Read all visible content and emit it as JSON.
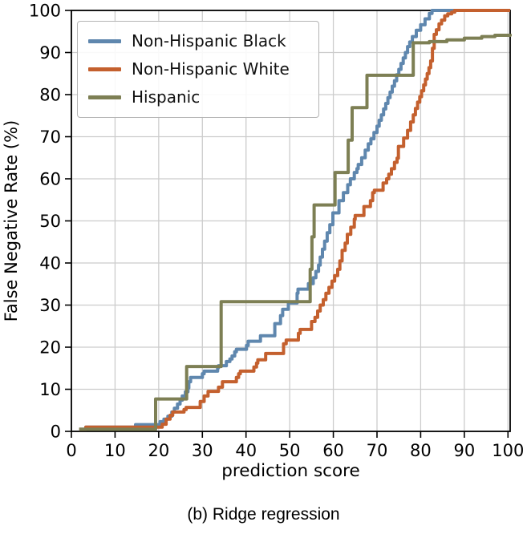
{
  "caption": "(b) Ridge regression",
  "chart_data": {
    "type": "line",
    "subtype": "step-post",
    "title": "",
    "xlabel": "prediction score",
    "ylabel": "False Negative Rate (%)",
    "xlim": [
      0,
      100.5
    ],
    "ylim": [
      0,
      100
    ],
    "xticks": [
      0,
      10,
      20,
      30,
      40,
      50,
      60,
      70,
      80,
      90,
      100
    ],
    "yticks": [
      0,
      10,
      20,
      30,
      40,
      50,
      60,
      70,
      80,
      90,
      100
    ],
    "grid": true,
    "grid_color": "#cccccc",
    "spine_color": "#000000",
    "legend_position": "upper-left",
    "series": [
      {
        "name": "Non-Hispanic Black",
        "color": "#5f87ae",
        "points": [
          [
            1.8,
            0.5
          ],
          [
            3.3,
            1
          ],
          [
            14.7,
            1.6
          ],
          [
            20.3,
            2.3
          ],
          [
            21.2,
            2.9
          ],
          [
            22.1,
            3.6
          ],
          [
            23,
            4.6
          ],
          [
            23.6,
            5.5
          ],
          [
            24.3,
            6.5
          ],
          [
            24.9,
            7.4
          ],
          [
            25.4,
            8.4
          ],
          [
            26.1,
            9.4
          ],
          [
            26.7,
            10.3
          ],
          [
            26.9,
            11.8
          ],
          [
            27.3,
            12.8
          ],
          [
            30,
            13.7
          ],
          [
            30.4,
            14.3
          ],
          [
            33.5,
            15.1
          ],
          [
            33.7,
            15.6
          ],
          [
            35.5,
            16.6
          ],
          [
            36.3,
            17.2
          ],
          [
            36.8,
            17.9
          ],
          [
            37.4,
            18.9
          ],
          [
            37.8,
            19.5
          ],
          [
            40.1,
            20.4
          ],
          [
            40.5,
            21.4
          ],
          [
            43.3,
            22.7
          ],
          [
            46.6,
            25.6
          ],
          [
            47.9,
            27.5
          ],
          [
            48.4,
            29
          ],
          [
            49.7,
            30.5
          ],
          [
            51.7,
            32.8
          ],
          [
            51.9,
            33.8
          ],
          [
            54.3,
            35.1
          ],
          [
            55.4,
            36.5
          ],
          [
            56,
            38
          ],
          [
            56.6,
            39.5
          ],
          [
            57,
            41.4
          ],
          [
            57.5,
            43.3
          ],
          [
            58,
            45.2
          ],
          [
            58.6,
            47.2
          ],
          [
            59.2,
            49.1
          ],
          [
            59.9,
            51.9
          ],
          [
            61.3,
            54.8
          ],
          [
            62.3,
            56.7
          ],
          [
            63.3,
            58.6
          ],
          [
            63.9,
            60
          ],
          [
            64.8,
            61.5
          ],
          [
            65.4,
            62.4
          ],
          [
            65.7,
            63.4
          ],
          [
            66.5,
            65
          ],
          [
            67.3,
            66.8
          ],
          [
            68,
            68.3
          ],
          [
            68.6,
            69.5
          ],
          [
            69.3,
            71
          ],
          [
            70,
            72.5
          ],
          [
            70.5,
            73.9
          ],
          [
            71,
            75.2
          ],
          [
            71.5,
            76.6
          ],
          [
            72,
            77.9
          ],
          [
            72.5,
            79.3
          ],
          [
            73,
            80.6
          ],
          [
            73.5,
            82
          ],
          [
            74,
            83.3
          ],
          [
            74.5,
            84.7
          ],
          [
            75,
            86
          ],
          [
            75.5,
            87.4
          ],
          [
            76,
            88.7
          ],
          [
            76.5,
            90
          ],
          [
            77,
            91.4
          ],
          [
            77.5,
            92.5
          ],
          [
            78.1,
            93.8
          ],
          [
            79,
            95.3
          ],
          [
            80,
            96.6
          ],
          [
            81,
            98
          ],
          [
            82,
            99.3
          ],
          [
            82.6,
            100
          ],
          [
            100.5,
            100
          ]
        ]
      },
      {
        "name": "Non-Hispanic White",
        "color": "#c4602e",
        "points": [
          [
            1.8,
            0.5
          ],
          [
            3.3,
            1
          ],
          [
            20.8,
            1.7
          ],
          [
            21.7,
            2.9
          ],
          [
            22.6,
            3.8
          ],
          [
            23.2,
            4.6
          ],
          [
            25.8,
            5.2
          ],
          [
            26.3,
            5.7
          ],
          [
            29.5,
            7.1
          ],
          [
            30.4,
            8.4
          ],
          [
            31.3,
            9.5
          ],
          [
            33.7,
            10.5
          ],
          [
            34.6,
            11.8
          ],
          [
            37.8,
            12.8
          ],
          [
            38.3,
            13.7
          ],
          [
            38.7,
            14.3
          ],
          [
            41.8,
            15.3
          ],
          [
            42.4,
            16.2
          ],
          [
            42.7,
            17
          ],
          [
            44.5,
            18.5
          ],
          [
            48.6,
            20.8
          ],
          [
            49.2,
            21.7
          ],
          [
            52,
            23.3
          ],
          [
            52.4,
            24.2
          ],
          [
            55,
            26.1
          ],
          [
            55.8,
            27.1
          ],
          [
            56.4,
            28.6
          ],
          [
            57,
            30
          ],
          [
            57.7,
            31.3
          ],
          [
            58.3,
            32.8
          ],
          [
            59,
            34.2
          ],
          [
            59.7,
            35.7
          ],
          [
            60.3,
            37
          ],
          [
            61,
            38.5
          ],
          [
            61.5,
            40.5
          ],
          [
            62,
            43
          ],
          [
            62.7,
            44.7
          ],
          [
            63.2,
            46.8
          ],
          [
            64,
            48.5
          ],
          [
            64.8,
            50.4
          ],
          [
            65,
            51.3
          ],
          [
            67,
            53.4
          ],
          [
            68.5,
            54.8
          ],
          [
            69,
            56.7
          ],
          [
            69.4,
            57.3
          ],
          [
            71.4,
            59
          ],
          [
            72.2,
            60
          ],
          [
            72.7,
            61.1
          ],
          [
            73.3,
            62.4
          ],
          [
            74,
            63.9
          ],
          [
            74.6,
            64.9
          ],
          [
            74.9,
            67.7
          ],
          [
            76.1,
            69.7
          ],
          [
            77,
            71.5
          ],
          [
            77.7,
            73.5
          ],
          [
            78.3,
            75.2
          ],
          [
            78.8,
            76.7
          ],
          [
            79.3,
            78.2
          ],
          [
            79.8,
            79.5
          ],
          [
            80.2,
            80.9
          ],
          [
            80.7,
            82.3
          ],
          [
            81.1,
            83.7
          ],
          [
            81.5,
            85
          ],
          [
            81.9,
            86.4
          ],
          [
            82.3,
            88
          ],
          [
            82.7,
            91
          ],
          [
            83.1,
            94.3
          ],
          [
            83.6,
            95.4
          ],
          [
            84.2,
            96.8
          ],
          [
            84.8,
            97.7
          ],
          [
            85.5,
            98.7
          ],
          [
            86.2,
            99.2
          ],
          [
            87.1,
            99.6
          ],
          [
            87.8,
            100
          ],
          [
            100.5,
            100
          ]
        ]
      },
      {
        "name": "Hispanic",
        "color": "#7d7f54",
        "points": [
          [
            1.8,
            0.5
          ],
          [
            19.3,
            7.7
          ],
          [
            26.4,
            15.4
          ],
          [
            34.3,
            30.8
          ],
          [
            54.7,
            38.5
          ],
          [
            55.1,
            46.2
          ],
          [
            55.6,
            53.8
          ],
          [
            60.4,
            61.5
          ],
          [
            63.4,
            69.2
          ],
          [
            64.3,
            76.9
          ],
          [
            67.7,
            84.6
          ],
          [
            78.3,
            92.3
          ],
          [
            82,
            92.6
          ],
          [
            86,
            93
          ],
          [
            90,
            93.4
          ],
          [
            94,
            93.8
          ],
          [
            97,
            94.1
          ],
          [
            100.5,
            94.4
          ]
        ]
      }
    ]
  }
}
